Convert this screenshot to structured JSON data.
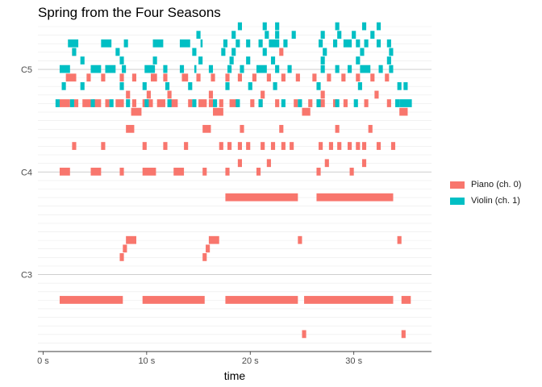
{
  "chart_data": {
    "type": "piano-roll",
    "title": "Spring from the Four Seasons",
    "xlabel": "time",
    "ylabel": "",
    "xlim": [
      -0.5,
      37.5
    ],
    "ylim": [
      39,
      77
    ],
    "x_ticks": [
      {
        "value": 0,
        "label": "0 s"
      },
      {
        "value": 10,
        "label": "10 s"
      },
      {
        "value": 20,
        "label": "20 s"
      },
      {
        "value": 30,
        "label": "30 s"
      }
    ],
    "y_ticks": [
      {
        "value": 48,
        "label": "C3"
      },
      {
        "value": 60,
        "label": "C4"
      },
      {
        "value": 72,
        "label": "C5"
      }
    ],
    "grid": true,
    "legend_position": "right",
    "series": [
      {
        "name": "Piano (ch. 0)",
        "color": "#F8766D",
        "notes": [
          [
            1.6,
            7.7,
            45
          ],
          [
            9.6,
            15.6,
            45
          ],
          [
            17.6,
            24.6,
            45
          ],
          [
            25.2,
            33.8,
            45
          ],
          [
            34.6,
            35.5,
            45
          ],
          [
            25.0,
            25.4,
            41
          ],
          [
            34.6,
            35.0,
            41
          ],
          [
            7.4,
            7.8,
            50
          ],
          [
            7.7,
            8.1,
            51
          ],
          [
            8.0,
            9.0,
            52
          ],
          [
            15.4,
            15.8,
            50
          ],
          [
            15.7,
            16.1,
            51
          ],
          [
            16.0,
            17.0,
            52
          ],
          [
            24.6,
            25.0,
            52
          ],
          [
            34.2,
            34.6,
            52
          ],
          [
            17.6,
            24.6,
            57
          ],
          [
            26.4,
            33.8,
            57
          ],
          [
            1.6,
            2.6,
            60
          ],
          [
            4.6,
            5.6,
            60
          ],
          [
            7.4,
            7.8,
            60
          ],
          [
            9.6,
            10.9,
            60
          ],
          [
            12.6,
            13.6,
            60
          ],
          [
            15.4,
            15.8,
            60
          ],
          [
            17.6,
            18.0,
            60
          ],
          [
            20.6,
            21.0,
            60
          ],
          [
            26.4,
            26.8,
            60
          ],
          [
            29.6,
            30.0,
            60
          ],
          [
            18.8,
            19.2,
            61
          ],
          [
            21.6,
            22.0,
            61
          ],
          [
            27.2,
            27.6,
            61
          ],
          [
            30.8,
            31.2,
            61
          ],
          [
            2.8,
            3.2,
            63
          ],
          [
            5.6,
            6.0,
            63
          ],
          [
            9.6,
            10.0,
            63
          ],
          [
            11.6,
            12.0,
            63
          ],
          [
            13.6,
            14.0,
            63
          ],
          [
            17.0,
            17.4,
            63
          ],
          [
            17.8,
            18.2,
            63
          ],
          [
            18.8,
            19.2,
            63
          ],
          [
            19.6,
            20.0,
            63
          ],
          [
            21.0,
            21.4,
            63
          ],
          [
            22.0,
            22.4,
            63
          ],
          [
            23.0,
            23.4,
            63
          ],
          [
            23.8,
            24.2,
            63
          ],
          [
            26.6,
            27.0,
            63
          ],
          [
            27.6,
            28.0,
            63
          ],
          [
            28.4,
            28.8,
            63
          ],
          [
            29.4,
            29.8,
            63
          ],
          [
            30.2,
            30.6,
            63
          ],
          [
            30.8,
            31.2,
            63
          ],
          [
            32.2,
            32.6,
            63
          ],
          [
            33.6,
            34.0,
            63
          ],
          [
            8.0,
            8.8,
            65
          ],
          [
            15.4,
            16.2,
            65
          ],
          [
            19.0,
            19.4,
            65
          ],
          [
            22.8,
            23.2,
            65
          ],
          [
            28.2,
            28.6,
            65
          ],
          [
            31.4,
            31.8,
            65
          ],
          [
            8.5,
            9.5,
            67
          ],
          [
            16.4,
            17.4,
            67
          ],
          [
            25.0,
            25.8,
            67
          ],
          [
            34.4,
            35.2,
            67
          ],
          [
            1.6,
            2.6,
            68
          ],
          [
            3.0,
            3.4,
            68
          ],
          [
            3.8,
            4.6,
            68
          ],
          [
            4.8,
            5.6,
            68
          ],
          [
            6.0,
            6.4,
            68
          ],
          [
            7.0,
            7.8,
            68
          ],
          [
            8.6,
            9.0,
            68
          ],
          [
            9.6,
            10.6,
            68
          ],
          [
            11.0,
            11.8,
            68
          ],
          [
            12.2,
            13.0,
            68
          ],
          [
            14.0,
            14.4,
            68
          ],
          [
            15.0,
            15.8,
            68
          ],
          [
            16.0,
            16.4,
            68
          ],
          [
            17.0,
            17.4,
            68
          ],
          [
            18.0,
            18.8,
            68
          ],
          [
            20.0,
            20.4,
            68
          ],
          [
            20.8,
            21.2,
            68
          ],
          [
            22.4,
            22.8,
            68
          ],
          [
            24.2,
            24.6,
            68
          ],
          [
            25.6,
            26.0,
            68
          ],
          [
            26.4,
            27.2,
            68
          ],
          [
            28.0,
            28.4,
            68
          ],
          [
            29.0,
            29.4,
            68
          ],
          [
            31.0,
            31.4,
            68
          ],
          [
            33.2,
            33.6,
            68
          ],
          [
            8.0,
            8.4,
            69
          ],
          [
            10.0,
            10.4,
            69
          ],
          [
            12.0,
            12.4,
            69
          ],
          [
            16.0,
            16.4,
            69
          ],
          [
            21.0,
            21.4,
            69
          ],
          [
            26.8,
            27.2,
            69
          ],
          [
            32.0,
            32.4,
            69
          ],
          [
            2.2,
            3.2,
            71
          ],
          [
            4.2,
            4.6,
            71
          ],
          [
            5.6,
            6.0,
            71
          ],
          [
            7.4,
            7.8,
            71
          ],
          [
            8.6,
            9.0,
            71
          ],
          [
            10.4,
            11.0,
            71
          ],
          [
            11.6,
            12.0,
            71
          ],
          [
            13.4,
            14.0,
            71
          ],
          [
            14.8,
            15.2,
            71
          ],
          [
            16.2,
            16.6,
            71
          ],
          [
            17.6,
            18.0,
            71
          ],
          [
            18.8,
            19.2,
            71
          ],
          [
            20.2,
            20.6,
            71
          ],
          [
            21.6,
            22.0,
            71
          ],
          [
            23.0,
            23.4,
            71
          ],
          [
            24.4,
            24.8,
            71
          ],
          [
            26.0,
            26.4,
            71
          ],
          [
            27.4,
            27.8,
            71
          ],
          [
            28.8,
            29.2,
            71
          ],
          [
            30.2,
            30.6,
            71
          ],
          [
            31.6,
            32.0,
            71
          ],
          [
            33.0,
            33.4,
            71
          ],
          [
            2.8,
            3.2,
            74
          ],
          [
            22.8,
            23.2,
            74
          ]
        ]
      },
      {
        "name": "Violin (ch. 1)",
        "color": "#00BFC4",
        "notes": [
          [
            1.2,
            1.6,
            68
          ],
          [
            2.6,
            3.0,
            68
          ],
          [
            4.6,
            5.0,
            68
          ],
          [
            6.4,
            6.8,
            68
          ],
          [
            8.0,
            8.4,
            68
          ],
          [
            9.8,
            10.2,
            68
          ],
          [
            12.0,
            12.4,
            68
          ],
          [
            14.4,
            14.8,
            68
          ],
          [
            16.4,
            16.8,
            68
          ],
          [
            18.6,
            19.0,
            68
          ],
          [
            20.8,
            21.2,
            68
          ],
          [
            23.0,
            23.4,
            68
          ],
          [
            24.6,
            25.0,
            68
          ],
          [
            26.4,
            26.8,
            68
          ],
          [
            28.2,
            28.6,
            68
          ],
          [
            30.0,
            30.4,
            68
          ],
          [
            34.0,
            34.4,
            68
          ],
          [
            34.4,
            35.6,
            68
          ],
          [
            1.8,
            2.2,
            70
          ],
          [
            3.6,
            4.0,
            70
          ],
          [
            7.4,
            7.8,
            70
          ],
          [
            9.6,
            10.0,
            70
          ],
          [
            11.8,
            12.2,
            70
          ],
          [
            14.0,
            14.4,
            70
          ],
          [
            17.6,
            18.0,
            70
          ],
          [
            19.8,
            20.2,
            70
          ],
          [
            22.2,
            22.6,
            70
          ],
          [
            26.4,
            26.8,
            70
          ],
          [
            30.4,
            30.8,
            70
          ],
          [
            34.2,
            34.6,
            70
          ],
          [
            34.8,
            35.2,
            70
          ],
          [
            1.6,
            2.6,
            72
          ],
          [
            4.6,
            5.6,
            72
          ],
          [
            6.0,
            7.0,
            72
          ],
          [
            7.6,
            8.0,
            72
          ],
          [
            9.8,
            10.8,
            72
          ],
          [
            11.6,
            12.0,
            72
          ],
          [
            13.2,
            13.6,
            72
          ],
          [
            14.6,
            14.8,
            72
          ],
          [
            16.0,
            16.4,
            72
          ],
          [
            17.8,
            18.2,
            72
          ],
          [
            19.0,
            19.4,
            72
          ],
          [
            20.6,
            21.6,
            72
          ],
          [
            22.4,
            22.8,
            72
          ],
          [
            23.6,
            24.0,
            72
          ],
          [
            26.8,
            27.2,
            72
          ],
          [
            28.2,
            28.6,
            72
          ],
          [
            29.4,
            29.8,
            72
          ],
          [
            30.6,
            31.6,
            72
          ],
          [
            32.4,
            32.8,
            72
          ],
          [
            33.4,
            33.8,
            72
          ],
          [
            3.6,
            4.0,
            73
          ],
          [
            7.4,
            7.8,
            73
          ],
          [
            10.6,
            11.0,
            73
          ],
          [
            15.0,
            15.4,
            73
          ],
          [
            18.0,
            18.4,
            73
          ],
          [
            19.6,
            20.0,
            73
          ],
          [
            22.0,
            22.4,
            73
          ],
          [
            26.8,
            27.2,
            73
          ],
          [
            30.2,
            30.6,
            73
          ],
          [
            33.2,
            33.6,
            73
          ],
          [
            2.8,
            3.2,
            74
          ],
          [
            7.0,
            7.4,
            74
          ],
          [
            14.4,
            14.8,
            74
          ],
          [
            17.2,
            17.6,
            74
          ],
          [
            18.2,
            18.6,
            74
          ],
          [
            21.2,
            21.6,
            74
          ],
          [
            27.0,
            27.4,
            74
          ],
          [
            30.6,
            31.0,
            74
          ],
          [
            33.4,
            33.8,
            74
          ],
          [
            2.4,
            3.4,
            75
          ],
          [
            5.6,
            6.6,
            75
          ],
          [
            7.8,
            8.2,
            75
          ],
          [
            10.6,
            11.6,
            75
          ],
          [
            13.2,
            14.2,
            75
          ],
          [
            15.2,
            15.4,
            75
          ],
          [
            17.4,
            17.8,
            75
          ],
          [
            18.6,
            19.0,
            75
          ],
          [
            19.6,
            20.0,
            75
          ],
          [
            20.8,
            21.2,
            75
          ],
          [
            21.8,
            22.8,
            75
          ],
          [
            23.2,
            23.6,
            75
          ],
          [
            26.6,
            27.0,
            75
          ],
          [
            28.0,
            28.4,
            75
          ],
          [
            29.0,
            29.8,
            75
          ],
          [
            30.2,
            30.6,
            75
          ],
          [
            31.0,
            31.4,
            75
          ],
          [
            32.2,
            32.6,
            75
          ],
          [
            33.2,
            33.6,
            75
          ],
          [
            14.8,
            15.2,
            76
          ],
          [
            18.2,
            18.6,
            76
          ],
          [
            21.4,
            21.8,
            76
          ],
          [
            22.4,
            22.8,
            76
          ],
          [
            24.0,
            24.4,
            76
          ],
          [
            26.8,
            27.2,
            76
          ],
          [
            28.4,
            28.8,
            76
          ],
          [
            29.8,
            30.2,
            76
          ],
          [
            31.6,
            32.0,
            76
          ],
          [
            18.8,
            19.2,
            77
          ],
          [
            21.2,
            21.6,
            77
          ],
          [
            22.4,
            22.8,
            77
          ],
          [
            28.2,
            28.6,
            77
          ],
          [
            30.8,
            31.2,
            77
          ],
          [
            32.2,
            32.6,
            77
          ]
        ]
      }
    ]
  }
}
